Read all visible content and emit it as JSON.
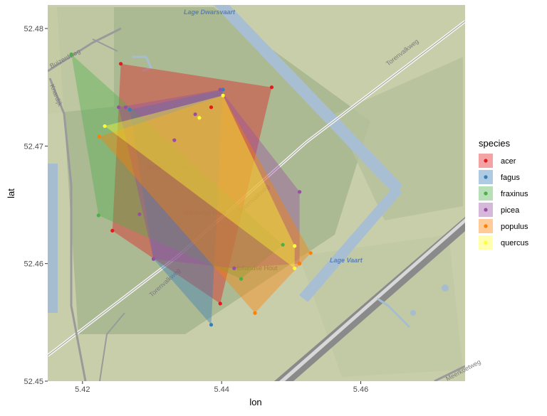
{
  "chart_data": {
    "type": "scatter",
    "subtype": "convex-hull polygons over map tiles",
    "xlabel": "lon",
    "ylabel": "lat",
    "xlim": [
      5.415,
      5.475
    ],
    "ylim": [
      52.45,
      52.482
    ],
    "xticks": [
      5.42,
      5.44,
      5.46
    ],
    "yticks": [
      52.45,
      52.46,
      52.47,
      52.48
    ],
    "grid": false,
    "legend": {
      "title": "species",
      "position": "right"
    },
    "series": [
      {
        "name": "acer",
        "color": "#E41A1C",
        "points": [
          [
            5.4255,
            52.477
          ],
          [
            5.4472,
            52.475
          ],
          [
            5.4398,
            52.4566
          ],
          [
            5.4243,
            52.4628
          ],
          [
            5.4385,
            52.4733
          ]
        ],
        "hull": [
          [
            5.4255,
            52.477
          ],
          [
            5.4472,
            52.475
          ],
          [
            5.4398,
            52.4566
          ],
          [
            5.4243,
            52.4628
          ]
        ]
      },
      {
        "name": "fagus",
        "color": "#377EB8",
        "points": [
          [
            5.4385,
            52.4548
          ],
          [
            5.4402,
            52.4748
          ],
          [
            5.4302,
            52.4604
          ],
          [
            5.4268,
            52.4731
          ]
        ],
        "hull": [
          [
            5.4268,
            52.4731
          ],
          [
            5.4402,
            52.4748
          ],
          [
            5.4385,
            52.4548
          ],
          [
            5.4302,
            52.4604
          ]
        ]
      },
      {
        "name": "fraxinus",
        "color": "#4DAF4A",
        "points": [
          [
            5.4184,
            52.4778
          ],
          [
            5.4223,
            52.4641
          ],
          [
            5.4428,
            52.4587
          ],
          [
            5.4488,
            52.4616
          ]
        ],
        "hull": [
          [
            5.4184,
            52.4778
          ],
          [
            5.4488,
            52.4616
          ],
          [
            5.4428,
            52.4587
          ],
          [
            5.4223,
            52.4641
          ]
        ]
      },
      {
        "name": "picea",
        "color": "#984EA3",
        "points": [
          [
            5.4252,
            52.4733
          ],
          [
            5.4262,
            52.4733
          ],
          [
            5.4398,
            52.4748
          ],
          [
            5.4512,
            52.4661
          ],
          [
            5.4512,
            52.46
          ],
          [
            5.4302,
            52.4604
          ],
          [
            5.4332,
            52.4705
          ],
          [
            5.4418,
            52.4596
          ],
          [
            5.4282,
            52.4642
          ],
          [
            5.4362,
            52.4727
          ]
        ],
        "hull": [
          [
            5.4252,
            52.4733
          ],
          [
            5.4398,
            52.4748
          ],
          [
            5.4512,
            52.4661
          ],
          [
            5.4512,
            52.46
          ],
          [
            5.4418,
            52.4596
          ],
          [
            5.4302,
            52.4604
          ]
        ]
      },
      {
        "name": "populus",
        "color": "#FF7F00",
        "points": [
          [
            5.4224,
            52.4708
          ],
          [
            5.4448,
            52.4558
          ],
          [
            5.4528,
            52.4609
          ],
          [
            5.4402,
            52.4743
          ],
          [
            5.4512,
            52.46
          ]
        ],
        "hull": [
          [
            5.4224,
            52.4708
          ],
          [
            5.4402,
            52.4743
          ],
          [
            5.4528,
            52.4609
          ],
          [
            5.4448,
            52.4558
          ]
        ]
      },
      {
        "name": "quercus",
        "color": "#FFFF33",
        "points": [
          [
            5.4232,
            52.4717
          ],
          [
            5.4402,
            52.4743
          ],
          [
            5.4505,
            52.4596
          ],
          [
            5.4505,
            52.4615
          ],
          [
            5.4368,
            52.4724
          ]
        ],
        "hull": [
          [
            5.4232,
            52.4717
          ],
          [
            5.4402,
            52.4743
          ],
          [
            5.4505,
            52.4615
          ],
          [
            5.4505,
            52.4596
          ]
        ]
      }
    ],
    "map_labels": [
      "Lage Dwarsvaart",
      "Buizerdweg",
      "Knardijk",
      "Torenvalkweg",
      "Torenvalkweg",
      "Torenvalkweg",
      "Hollandse Hout",
      "Hollandse Hout",
      "Hollandse Hout",
      "Lage Vaart",
      "Meerkoetweg"
    ]
  }
}
